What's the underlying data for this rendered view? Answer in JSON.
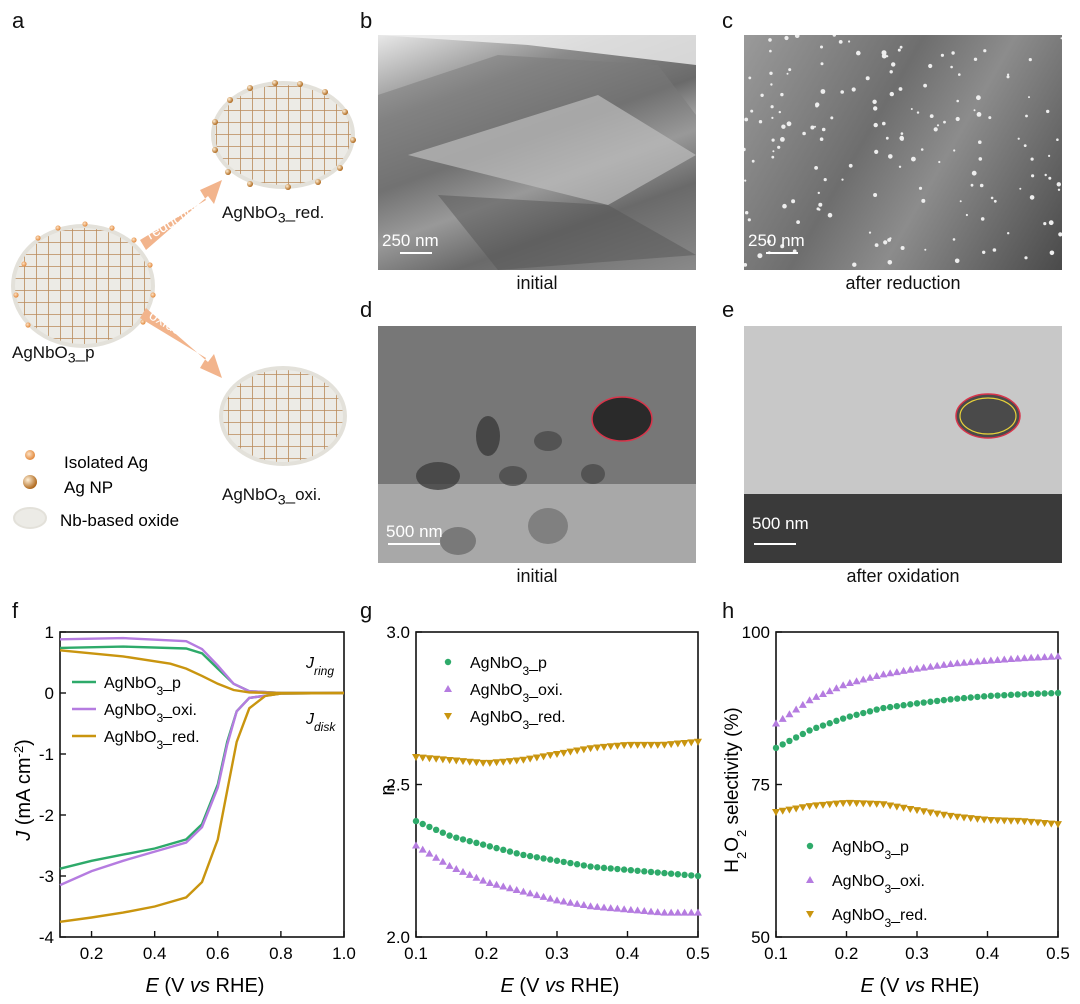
{
  "panels": {
    "a": {
      "label": "a",
      "names": [
        "AgNbO",
        "3",
        "_p"
      ],
      "red": [
        "AgNbO",
        "3",
        "_red."
      ],
      "oxi": [
        "AgNbO",
        "3",
        "_oxi."
      ],
      "arrow_reduction": "reduction",
      "arrow_oxidation": "oxidation",
      "legend": [
        "Isolated Ag",
        "Ag NP",
        "Nb-based oxide"
      ]
    },
    "b": {
      "label": "b",
      "scale": "250 nm",
      "caption": "initial"
    },
    "c": {
      "label": "c",
      "scale": "250 nm",
      "caption": "after reduction"
    },
    "d": {
      "label": "d",
      "scale": "500 nm",
      "caption": "initial"
    },
    "e": {
      "label": "e",
      "scale": "500 nm",
      "caption": "after oxidation"
    },
    "f": {
      "label": "f"
    },
    "g": {
      "label": "g"
    },
    "h": {
      "label": "h"
    }
  },
  "colors": {
    "green": "#2eaa6a",
    "purple": "#b57ce0",
    "gold": "#c9950f",
    "orange_arrow": "#f2b48c"
  },
  "chart_data": [
    {
      "id": "f",
      "type": "line",
      "xlabel": "E (V vs RHE)",
      "ylabel": "J (mA cm-2)",
      "xlim": [
        0.1,
        1.0
      ],
      "ylim": [
        -4,
        1
      ],
      "xticks": [
        "0.2",
        "0.4",
        "0.6",
        "0.8",
        "1.0"
      ],
      "yticks": [
        "1",
        "0",
        "-1",
        "-2",
        "-3",
        "-4"
      ],
      "annotations": [
        "Jring",
        "Jdisk"
      ],
      "legend": [
        "AgNbO3_p",
        "AgNbO3_oxi.",
        "AgNbO3_red."
      ],
      "series": [
        {
          "name": "AgNbO3_p",
          "ring": [
            [
              0.1,
              0.74
            ],
            [
              0.3,
              0.76
            ],
            [
              0.5,
              0.73
            ],
            [
              0.55,
              0.65
            ],
            [
              0.6,
              0.4
            ],
            [
              0.65,
              0.15
            ],
            [
              0.7,
              0.03
            ],
            [
              0.8,
              0.0
            ],
            [
              1.0,
              0.0
            ]
          ],
          "disk": [
            [
              0.1,
              -2.88
            ],
            [
              0.2,
              -2.75
            ],
            [
              0.3,
              -2.65
            ],
            [
              0.4,
              -2.55
            ],
            [
              0.5,
              -2.4
            ],
            [
              0.55,
              -2.15
            ],
            [
              0.6,
              -1.5
            ],
            [
              0.63,
              -0.8
            ],
            [
              0.66,
              -0.3
            ],
            [
              0.7,
              -0.08
            ],
            [
              0.8,
              -0.01
            ],
            [
              1.0,
              0.0
            ]
          ]
        },
        {
          "name": "AgNbO3_oxi.",
          "ring": [
            [
              0.1,
              0.88
            ],
            [
              0.3,
              0.9
            ],
            [
              0.5,
              0.85
            ],
            [
              0.55,
              0.72
            ],
            [
              0.6,
              0.45
            ],
            [
              0.65,
              0.15
            ],
            [
              0.7,
              0.03
            ],
            [
              0.8,
              0.0
            ],
            [
              1.0,
              0.0
            ]
          ],
          "disk": [
            [
              0.1,
              -3.15
            ],
            [
              0.2,
              -2.92
            ],
            [
              0.3,
              -2.75
            ],
            [
              0.4,
              -2.6
            ],
            [
              0.5,
              -2.45
            ],
            [
              0.55,
              -2.2
            ],
            [
              0.6,
              -1.55
            ],
            [
              0.63,
              -0.85
            ],
            [
              0.66,
              -0.3
            ],
            [
              0.7,
              -0.08
            ],
            [
              0.8,
              -0.01
            ],
            [
              1.0,
              0.0
            ]
          ]
        },
        {
          "name": "AgNbO3_red.",
          "ring": [
            [
              0.1,
              0.7
            ],
            [
              0.3,
              0.6
            ],
            [
              0.45,
              0.48
            ],
            [
              0.5,
              0.4
            ],
            [
              0.55,
              0.28
            ],
            [
              0.6,
              0.15
            ],
            [
              0.65,
              0.05
            ],
            [
              0.7,
              0.01
            ],
            [
              0.8,
              0.0
            ],
            [
              1.0,
              0.0
            ]
          ],
          "disk": [
            [
              0.1,
              -3.75
            ],
            [
              0.2,
              -3.68
            ],
            [
              0.3,
              -3.6
            ],
            [
              0.4,
              -3.5
            ],
            [
              0.5,
              -3.35
            ],
            [
              0.55,
              -3.1
            ],
            [
              0.6,
              -2.4
            ],
            [
              0.63,
              -1.6
            ],
            [
              0.66,
              -0.8
            ],
            [
              0.7,
              -0.25
            ],
            [
              0.75,
              -0.05
            ],
            [
              0.8,
              -0.01
            ],
            [
              1.0,
              0.0
            ]
          ]
        }
      ]
    },
    {
      "id": "g",
      "type": "scatter",
      "xlabel": "E (V vs RHE)",
      "ylabel": "n",
      "xlim": [
        0.1,
        0.5
      ],
      "ylim": [
        2.0,
        3.0
      ],
      "xticks": [
        "0.1",
        "0.2",
        "0.3",
        "0.4",
        "0.5"
      ],
      "yticks": [
        "2.0",
        "2.5",
        "3.0"
      ],
      "legend": [
        "AgNbO3_p",
        "AgNbO3_oxi.",
        "AgNbO3_red."
      ],
      "series": [
        {
          "name": "AgNbO3_p",
          "marker": "circle",
          "points": [
            [
              0.1,
              2.38
            ],
            [
              0.15,
              2.33
            ],
            [
              0.2,
              2.3
            ],
            [
              0.25,
              2.27
            ],
            [
              0.3,
              2.25
            ],
            [
              0.35,
              2.23
            ],
            [
              0.4,
              2.22
            ],
            [
              0.45,
              2.21
            ],
            [
              0.5,
              2.2
            ]
          ]
        },
        {
          "name": "AgNbO3_oxi.",
          "marker": "triangle-up",
          "points": [
            [
              0.1,
              2.3
            ],
            [
              0.15,
              2.23
            ],
            [
              0.2,
              2.18
            ],
            [
              0.25,
              2.15
            ],
            [
              0.3,
              2.12
            ],
            [
              0.35,
              2.1
            ],
            [
              0.4,
              2.09
            ],
            [
              0.45,
              2.08
            ],
            [
              0.5,
              2.08
            ]
          ]
        },
        {
          "name": "AgNbO3_red.",
          "marker": "triangle-down",
          "points": [
            [
              0.1,
              2.59
            ],
            [
              0.15,
              2.58
            ],
            [
              0.2,
              2.57
            ],
            [
              0.25,
              2.58
            ],
            [
              0.3,
              2.6
            ],
            [
              0.35,
              2.62
            ],
            [
              0.4,
              2.63
            ],
            [
              0.45,
              2.63
            ],
            [
              0.5,
              2.64
            ]
          ]
        }
      ]
    },
    {
      "id": "h",
      "type": "scatter",
      "xlabel": "E (V vs RHE)",
      "ylabel": "H2O2 selectivity (%)",
      "xlim": [
        0.1,
        0.5
      ],
      "ylim": [
        50,
        100
      ],
      "xticks": [
        "0.1",
        "0.2",
        "0.3",
        "0.4",
        "0.5"
      ],
      "yticks": [
        "50",
        "75",
        "100"
      ],
      "legend": [
        "AgNbO3_p",
        "AgNbO3_oxi.",
        "AgNbO3_red."
      ],
      "series": [
        {
          "name": "AgNbO3_p",
          "marker": "circle",
          "points": [
            [
              0.1,
              81
            ],
            [
              0.15,
              84
            ],
            [
              0.2,
              86
            ],
            [
              0.25,
              87.5
            ],
            [
              0.3,
              88.3
            ],
            [
              0.35,
              89
            ],
            [
              0.4,
              89.5
            ],
            [
              0.45,
              89.8
            ],
            [
              0.5,
              90
            ]
          ]
        },
        {
          "name": "AgNbO3_oxi.",
          "marker": "triangle-up",
          "points": [
            [
              0.1,
              85
            ],
            [
              0.15,
              89
            ],
            [
              0.2,
              91.5
            ],
            [
              0.25,
              93
            ],
            [
              0.3,
              94
            ],
            [
              0.35,
              94.8
            ],
            [
              0.4,
              95.3
            ],
            [
              0.45,
              95.7
            ],
            [
              0.5,
              96
            ]
          ]
        },
        {
          "name": "AgNbO3_red.",
          "marker": "triangle-down",
          "points": [
            [
              0.1,
              70.5
            ],
            [
              0.15,
              71.5
            ],
            [
              0.2,
              72
            ],
            [
              0.25,
              71.8
            ],
            [
              0.3,
              70.8
            ],
            [
              0.35,
              69.8
            ],
            [
              0.4,
              69.2
            ],
            [
              0.45,
              69
            ],
            [
              0.5,
              68.5
            ]
          ]
        }
      ]
    }
  ]
}
